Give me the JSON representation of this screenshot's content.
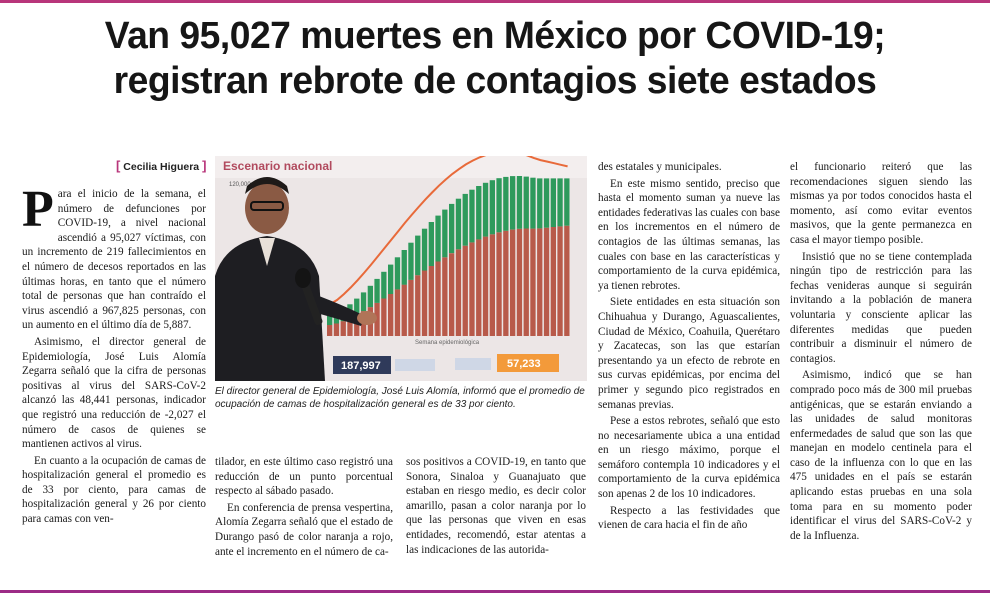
{
  "headline": {
    "line1": "Van 95,027 muertes en México por COVID-19;",
    "line2": "registran rebrote de contagios siete estados"
  },
  "byline": {
    "open": "[",
    "name": "Cecilia Higuera",
    "close": "]"
  },
  "photo": {
    "slide_title": "Escenario nacional",
    "axis_top": "120,000",
    "axis_bottom": "Semana epidemiológica",
    "stat_left": "187,997",
    "stat_right": "57,233"
  },
  "caption": "El director general de Epidemiología, José Luis Alomía, informó que el promedio de ocupación de camas de hospitalización general es de 33 por ciento.",
  "col1": {
    "dropcap": "P",
    "p1": "ara el inicio de la semana, el número de defunciones por COVID-19, a nivel nacional ascendió a 95,027 víctimas, con un incremento de 219 fallecimientos en el número de decesos reportados en las últimas horas, en tanto que el número total de personas que han contraído el virus ascendió a 967,825 personas, con un aumento en el último día de 5,887.",
    "p2": "Asimismo, el director general de Epidemiología, José Luis Alomía Zegarra señaló que la cifra de personas positivas al virus del SARS-CoV-2 alcanzó las 48,441 personas, indicador que registró una reducción de -2,027 el número de casos de quienes se mantienen activos al virus.",
    "p3": "En cuanto a la ocupación de camas de hospitalización general el promedio es de 33 por ciento, para camas de hospitalización general y 26 por ciento para camas con ven-"
  },
  "col2": {
    "p1": "tilador, en este último caso registró una reducción de un punto porcentual respecto al sábado pasado.",
    "p2": "En conferencia de prensa vespertina, Alomía Zegarra señaló que el estado de Durango pasó de color naranja a rojo, ante el incremento en el número de ca-"
  },
  "col3": {
    "p1": "sos positivos a COVID-19, en tanto que Sonora, Sinaloa y Guanajuato que estaban en riesgo medio, es decir color amarillo, pasan a color naranja por lo que las personas que viven en esas entidades, recomendó, estar atentas a las indicaciones de las autorida-"
  },
  "col4": {
    "p1": "des estatales y municipales.",
    "p2": "En este mismo sentido, preciso que hasta el momento suman ya nueve las entidades federativas las cuales con base en los incrementos en el número de contagios de las últimas semanas, las cuales con base en las características y comportamiento de la curva epidémica, ya tienen rebrotes.",
    "p3": "Siete entidades en esta situación son Chihuahua y Durango, Aguascalientes, Ciudad de México, Coahuila, Querétaro y Zacatecas, son las que estarían presentando ya un efecto de rebrote en sus curvas epidémicas, por encima del primer y segundo pico registrados en semanas previas.",
    "p4": "Pese a estos rebrotes, señaló que esto no necesariamente ubica a una entidad en un riesgo máximo, porque el semáforo contempla 10 indicadores y el comportamiento de la curva epidémica son apenas 2 de los 10 indicadores.",
    "p5": "Respecto a las festividades que vienen de cara hacia el fin de año"
  },
  "col5": {
    "p1": "el funcionario reiteró que las recomendaciones siguen siendo las mismas ya por todos conocidos hasta el momento, así como evitar eventos masivos, que la gente permanezca en casa el mayor tiempo posible.",
    "p2": "Insistió que no se tiene contemplada ningún tipo de restricción para las fechas venideras aunque si seguirán invitando a la población de manera voluntaria y consciente aplicar las diferentes medidas que pueden contribuir a disminuir el número de contagios.",
    "p3": "Asimismo, indicó que se han comprado poco más de 300 mil pruebas antigénicas, que se estarán enviando a las unidades de salud monitoras enfermedades de salud que son las que manejan en modelo centinela para el caso de la influenza con lo que en las 475 unidades en el país se estarán aplicando estas pruebas en una sola toma para en su momento poder identificar el virus del SARS-CoV-2 y de la Influenza."
  },
  "colors": {
    "accent": "#b8357a",
    "bars_green": "#2e9a5c",
    "bars_red": "#b85a4a",
    "curve": "#e86a3a"
  }
}
